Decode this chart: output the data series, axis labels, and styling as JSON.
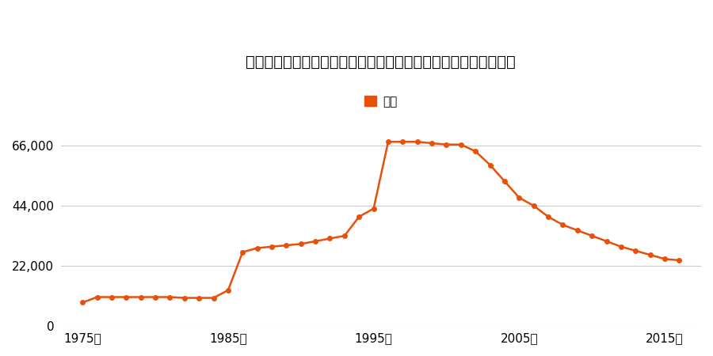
{
  "title": "茨城県猿島郡五霞村大字元栗橋字丸池台２８４０番１の地価推移",
  "legend_label": "価格",
  "line_color": "#E8500A",
  "marker_color": "#E8500A",
  "background_color": "#ffffff",
  "ylim": [
    0,
    75000
  ],
  "yticks": [
    0,
    22000,
    44000,
    66000
  ],
  "ytick_labels": [
    "0",
    "22,000",
    "44,000",
    "66,000"
  ],
  "xticks": [
    1975,
    1985,
    1995,
    2005,
    2015
  ],
  "xtick_labels": [
    "1975年",
    "1985年",
    "1995年",
    "2005年",
    "2015年"
  ],
  "years": [
    1975,
    1976,
    1977,
    1978,
    1979,
    1980,
    1981,
    1982,
    1983,
    1984,
    1985,
    1986,
    1987,
    1988,
    1989,
    1990,
    1991,
    1992,
    1993,
    1994,
    1995,
    1996,
    1997,
    1998,
    1999,
    2000,
    2001,
    2002,
    2003,
    2004,
    2005,
    2006,
    2007,
    2008,
    2009,
    2010,
    2011,
    2012,
    2013,
    2014,
    2015,
    2016
  ],
  "prices": [
    8500,
    10500,
    10500,
    10500,
    10500,
    10500,
    10500,
    10200,
    10200,
    10200,
    13000,
    27000,
    28500,
    29000,
    29500,
    30000,
    31000,
    32000,
    33000,
    40000,
    43000,
    67500,
    67500,
    67500,
    67000,
    66500,
    66500,
    64000,
    59000,
    53000,
    47000,
    44000,
    40000,
    37000,
    35000,
    33000,
    31000,
    29000,
    27500,
    26000,
    24500,
    24000
  ]
}
